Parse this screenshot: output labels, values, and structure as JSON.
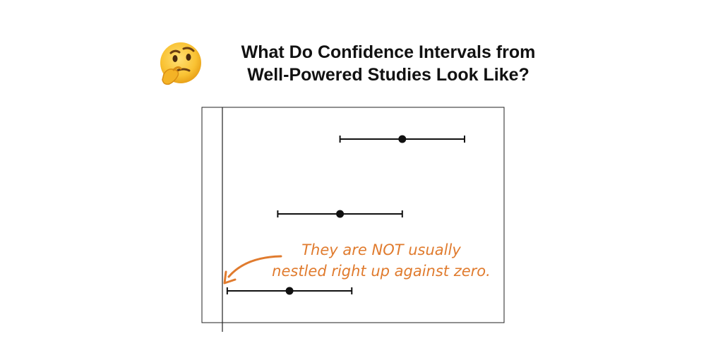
{
  "title": {
    "line1": "What Do Confidence Intervals from",
    "line2": "Well-Powered Studies Look Like?",
    "icon": "thinking-face-icon"
  },
  "chart_data": {
    "type": "scatter",
    "title": "What Do Confidence Intervals from Well-Powered Studies Look Like?",
    "xlabel": "",
    "ylabel": "",
    "grid": false,
    "zero_line": true,
    "intervals": [
      {
        "estimate": 2.6,
        "lower": 1.7,
        "upper": 3.5
      },
      {
        "estimate": 1.7,
        "lower": 0.8,
        "upper": 2.6
      },
      {
        "estimate": 0.97,
        "lower": 0.07,
        "upper": 1.87
      }
    ],
    "annotation": {
      "lines": [
        "They are NOT usually",
        "nestled right up against zero."
      ],
      "color": "#E07B2E"
    }
  }
}
